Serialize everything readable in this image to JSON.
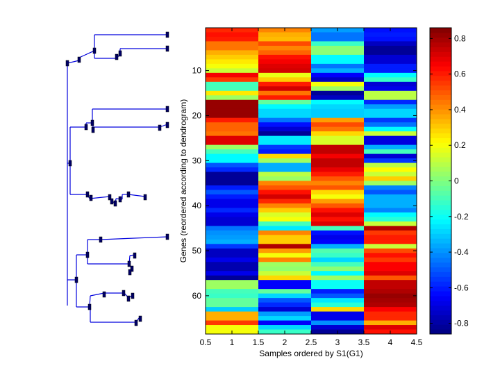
{
  "chart_data": {
    "type": "heatmap",
    "title": "",
    "xlabel": "Samples ordered by S1(G1)",
    "ylabel": "Genes (reordered according to dendrogram)",
    "xlim": [
      0.5,
      4.5
    ],
    "ylim": [
      0.5,
      68.5
    ],
    "x_ticks": [
      "0.5",
      "1",
      "1.5",
      "2",
      "2.5",
      "3",
      "3.5",
      "4",
      "4.5"
    ],
    "y_ticks": [
      "10",
      "20",
      "30",
      "40",
      "50",
      "60"
    ],
    "colormap": "jet",
    "colorbar": {
      "range": [
        -0.86,
        0.86
      ],
      "ticks": [
        "0.8",
        "0.6",
        "0.4",
        "0.2",
        "0",
        "-0.2",
        "-0.4",
        "-0.6",
        "-0.8"
      ],
      "placement": "right"
    },
    "columns": [
      "1",
      "2",
      "3",
      "4"
    ],
    "rows": [
      [
        0.58,
        0.42,
        -0.38,
        -0.62
      ],
      [
        0.62,
        0.35,
        -0.45,
        -0.6
      ],
      [
        0.6,
        0.33,
        -0.45,
        -0.62
      ],
      [
        0.45,
        0.52,
        -0.12,
        -0.75
      ],
      [
        0.45,
        0.42,
        0.02,
        -0.82
      ],
      [
        0.35,
        0.48,
        0.02,
        -0.82
      ],
      [
        0.3,
        0.62,
        -0.22,
        -0.72
      ],
      [
        0.25,
        0.66,
        -0.22,
        -0.72
      ],
      [
        0.2,
        0.7,
        -0.45,
        -0.6
      ],
      [
        0.12,
        0.72,
        -0.35,
        -0.6
      ],
      [
        0.66,
        0.18,
        -0.65,
        -0.22
      ],
      [
        0.55,
        0.3,
        -0.75,
        -0.12
      ],
      [
        -0.1,
        0.6,
        0.2,
        -0.72
      ],
      [
        -0.1,
        0.72,
        0.05,
        -0.68
      ],
      [
        0.25,
        0.45,
        -0.82,
        0.1
      ],
      [
        0.05,
        0.6,
        -0.75,
        0.1
      ],
      [
        0.82,
        -0.05,
        -0.22,
        -0.58
      ],
      [
        0.82,
        -0.22,
        -0.28,
        -0.38
      ],
      [
        0.82,
        -0.28,
        -0.3,
        -0.28
      ],
      [
        0.82,
        -0.28,
        -0.3,
        -0.28
      ],
      [
        0.6,
        -0.45,
        0.38,
        -0.55
      ],
      [
        0.48,
        -0.62,
        0.52,
        -0.45
      ],
      [
        0.48,
        -0.72,
        0.45,
        -0.22
      ],
      [
        0.45,
        -0.82,
        0.28,
        0.12
      ],
      [
        0.7,
        -0.25,
        0.15,
        -0.7
      ],
      [
        0.7,
        -0.25,
        0.15,
        -0.7
      ],
      [
        0.05,
        -0.55,
        0.75,
        -0.35
      ],
      [
        -0.1,
        -0.6,
        0.75,
        -0.1
      ],
      [
        -0.22,
        0.28,
        0.66,
        -0.72
      ],
      [
        -0.22,
        0.05,
        0.75,
        -0.55
      ],
      [
        -0.5,
        -0.35,
        0.75,
        0.1
      ],
      [
        -0.58,
        -0.35,
        0.68,
        0.22
      ],
      [
        -0.82,
        0.1,
        0.6,
        0.12
      ],
      [
        -0.82,
        0.05,
        0.5,
        0.3
      ],
      [
        -0.82,
        0.42,
        0.42,
        0.05
      ],
      [
        -0.6,
        0.5,
        0.5,
        -0.42
      ],
      [
        -0.5,
        0.62,
        0.28,
        -0.5
      ],
      [
        -0.6,
        0.72,
        0.2,
        -0.35
      ],
      [
        -0.68,
        0.58,
        0.38,
        -0.35
      ],
      [
        -0.68,
        0.42,
        0.5,
        -0.35
      ],
      [
        -0.58,
        0.3,
        0.62,
        -0.42
      ],
      [
        -0.68,
        0.15,
        0.7,
        -0.22
      ],
      [
        -0.72,
        0.2,
        0.62,
        -0.15
      ],
      [
        -0.72,
        -0.1,
        0.7,
        0.12
      ],
      [
        -0.45,
        -0.25,
        -0.1,
        0.78
      ],
      [
        -0.4,
        0.42,
        -0.62,
        0.55
      ],
      [
        -0.38,
        0.3,
        -0.68,
        0.6
      ],
      [
        -0.35,
        0.3,
        -0.65,
        0.6
      ],
      [
        -0.55,
        0.78,
        -0.35,
        0.12
      ],
      [
        -0.75,
        0.38,
        -0.08,
        0.52
      ],
      [
        -0.75,
        0.2,
        -0.12,
        0.62
      ],
      [
        -0.68,
        0.42,
        -0.28,
        0.55
      ],
      [
        -0.78,
        0.05,
        -0.1,
        0.65
      ],
      [
        -0.78,
        0.03,
        0.02,
        0.65
      ],
      [
        -0.68,
        0.12,
        -0.22,
        0.7
      ],
      [
        -0.82,
        0.28,
        0.05,
        0.5
      ],
      [
        0.05,
        -0.65,
        -0.2,
        0.75
      ],
      [
        0.05,
        -0.65,
        -0.2,
        0.75
      ],
      [
        -0.1,
        -0.05,
        -0.6,
        0.78
      ],
      [
        -0.12,
        -0.28,
        -0.5,
        0.82
      ],
      [
        -0.05,
        -0.5,
        -0.25,
        0.8
      ],
      [
        -0.05,
        -0.58,
        -0.15,
        0.78
      ],
      [
        -0.3,
        -0.72,
        0.28,
        0.65
      ],
      [
        0.35,
        -0.38,
        -0.68,
        0.58
      ],
      [
        0.35,
        -0.28,
        -0.68,
        0.58
      ],
      [
        0.55,
        -0.65,
        -0.4,
        0.35
      ],
      [
        0.2,
        -0.28,
        -0.72,
        0.7
      ],
      [
        0.2,
        -0.12,
        -0.82,
        0.62
      ]
    ]
  },
  "dendrogram": {
    "orientation": "left",
    "line_color": "#0000dd",
    "node_color": "#000066"
  }
}
